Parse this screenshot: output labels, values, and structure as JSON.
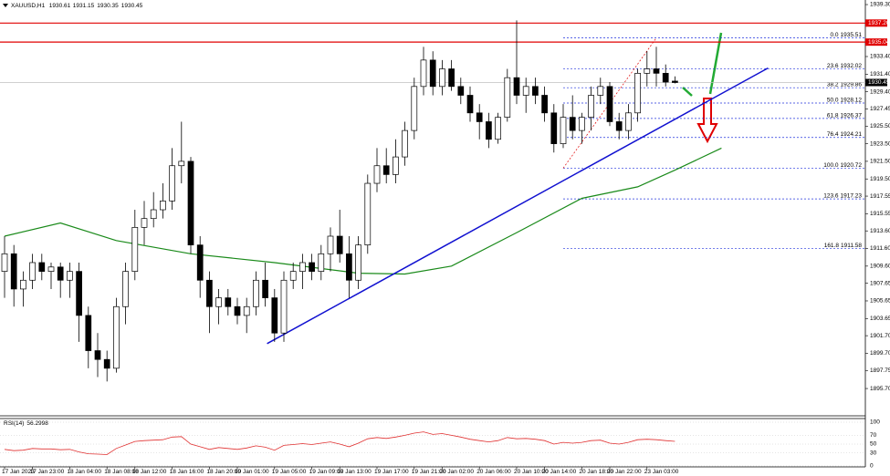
{
  "chart_data": {
    "type": "candlestick",
    "title": "XAUUSD,H1",
    "open": [
      1909,
      1911,
      1907,
      1908,
      1910,
      1909,
      1909.5,
      1908,
      1909,
      1904,
      1900,
      1899,
      1898,
      1905,
      1909,
      1914,
      1915,
      1916,
      1917,
      1921,
      1921.5,
      1912,
      1908,
      1905,
      1906,
      1905,
      1904,
      1905,
      1908,
      1906,
      1902,
      1908,
      1909,
      1910,
      1909,
      1911,
      1913,
      1911,
      1908,
      1912,
      1919,
      1921,
      1920,
      1922,
      1925,
      1930,
      1933,
      1930,
      1932,
      1930,
      1929,
      1927,
      1926,
      1924,
      1926.5,
      1931,
      1929,
      1930,
      1929,
      1927,
      1923.5,
      1926.5,
      1925,
      1926.5,
      1929,
      1930,
      1926,
      1925,
      1927,
      1931.5,
      1932,
      1931.5,
      1930.61
    ],
    "high": [
      1913,
      1912,
      1909,
      1911,
      1911,
      1910,
      1910,
      1910,
      1910,
      1905,
      1902,
      1900,
      1906,
      1910,
      1916,
      1917,
      1918,
      1919,
      1923,
      1926,
      1922,
      1913,
      1909,
      1907,
      1907,
      1906,
      1906,
      1909,
      1910,
      1907,
      1909,
      1910,
      1911,
      1911,
      1912,
      1914,
      1916,
      1913,
      1913,
      1920,
      1923,
      1923,
      1924,
      1926,
      1931,
      1934.5,
      1934,
      1933,
      1933,
      1931,
      1930,
      1928,
      1927,
      1927,
      1932,
      1937.5,
      1931,
      1931,
      1930,
      1928,
      1928,
      1929,
      1927,
      1930,
      1931,
      1930.5,
      1927,
      1928,
      1932,
      1934,
      1934.5,
      1932.5,
      1931.15
    ],
    "low": [
      1906,
      1905,
      1905,
      1907,
      1908,
      1907,
      1906,
      1906,
      1901,
      1898,
      1897,
      1896.5,
      1897.5,
      1903,
      1908,
      1912,
      1914,
      1915,
      1916,
      1919,
      1911,
      1906,
      1902,
      1903,
      1904,
      1903,
      1902,
      1904,
      1905,
      1901,
      1901,
      1907,
      1907,
      1908,
      1908,
      1909,
      1910,
      1906,
      1907,
      1911,
      1918,
      1919,
      1919,
      1921,
      1924,
      1929,
      1929,
      1929,
      1929.5,
      1928,
      1926,
      1924,
      1923,
      1923.5,
      1926,
      1928,
      1927,
      1928,
      1926,
      1922.5,
      1923,
      1924,
      1923.5,
      1925,
      1928,
      1925.5,
      1924,
      1924,
      1926,
      1930,
      1930,
      1930,
      1930.35
    ],
    "close": [
      1911,
      1907,
      1908,
      1910,
      1909,
      1909.5,
      1908,
      1909,
      1904,
      1900,
      1899,
      1898,
      1905,
      1909,
      1914,
      1915,
      1916,
      1917,
      1921,
      1921.5,
      1912,
      1908,
      1905,
      1906,
      1905,
      1904,
      1905,
      1908,
      1906,
      1902,
      1908,
      1909,
      1910,
      1909,
      1911,
      1913,
      1911,
      1908,
      1912,
      1919,
      1921,
      1920,
      1922,
      1925,
      1930,
      1933,
      1930,
      1932,
      1930,
      1929,
      1927,
      1926,
      1924,
      1926.5,
      1931,
      1929,
      1930,
      1929,
      1927,
      1923.5,
      1926.5,
      1925,
      1926.5,
      1929,
      1930,
      1926,
      1925,
      1927,
      1931.5,
      1932,
      1931.5,
      1930.5,
      1930.45
    ],
    "ylim": [
      1892.6,
      1939.82
    ],
    "yticks": [
      {
        "value": 1939.3,
        "label": "1939.30"
      },
      {
        "value": 1933.4,
        "label": "1933.40"
      },
      {
        "value": 1931.4,
        "label": "1931.40"
      },
      {
        "value": 1929.4,
        "label": "1929.40"
      },
      1927.45,
      {
        "value": 1925.5,
        "label": "1925.50"
      },
      {
        "value": 1923.5,
        "label": "1923.50"
      },
      {
        "value": 1921.5,
        "label": "1921.50"
      },
      {
        "value": 1919.5,
        "label": "1919.50"
      },
      1917.55,
      1915.55,
      {
        "value": 1913.6,
        "label": "1913.60"
      },
      {
        "value": 1911.6,
        "label": "1911.60"
      },
      {
        "value": 1909.6,
        "label": "1909.60"
      },
      1907.65,
      1905.65,
      1903.65,
      {
        "value": 1901.7,
        "label": "1901.70"
      },
      {
        "value": 1899.7,
        "label": "1899.70"
      },
      1897.75,
      {
        "value": 1895.7,
        "label": "1895.70"
      }
    ],
    "xticks": [
      {
        "value": 0,
        "label": "17 Jan 2023"
      },
      {
        "value": 3,
        "label": "17 Jan 23:00"
      },
      {
        "value": 7,
        "label": "18 Jan 04:00"
      },
      {
        "value": 11,
        "label": "18 Jan 08:00"
      },
      {
        "value": 14,
        "label": "18 Jan 12:00"
      },
      {
        "value": 18,
        "label": "18 Jan 16:00"
      },
      {
        "value": 22,
        "label": "18 Jan 20:00"
      },
      {
        "value": 25,
        "label": "19 Jan 01:00"
      },
      {
        "value": 29,
        "label": "19 Jan 05:00"
      },
      {
        "value": 33,
        "label": "19 Jan 09:00"
      },
      {
        "value": 36,
        "label": "19 Jan 13:00"
      },
      {
        "value": 40,
        "label": "19 Jan 17:00"
      },
      {
        "value": 44,
        "label": "19 Jan 21:00"
      },
      {
        "value": 47,
        "label": "20 Jan 02:00"
      },
      {
        "value": 51,
        "label": "20 Jan 06:00"
      },
      {
        "value": 55,
        "label": "20 Jan 10:00"
      },
      {
        "value": 58,
        "label": "20 Jan 14:00"
      },
      {
        "value": 62,
        "label": "20 Jan 18:00"
      },
      {
        "value": 65,
        "label": "20 Jan 22:00"
      },
      {
        "value": 69,
        "label": "23 Jan 03:00"
      }
    ],
    "up_color": "#ffffff",
    "down_color": "#000000",
    "hlines": [
      {
        "value": 1937.2,
        "label": "1937.20"
      },
      1935.04
    ],
    "hline_color": "#e00000",
    "ma": {
      "x": [
        0,
        6,
        12,
        20,
        29,
        38,
        43,
        48,
        55,
        62,
        68,
        72,
        77
      ],
      "values": [
        1913,
        1914.5,
        1912.5,
        1911,
        1910,
        1908.8,
        1908.7,
        1909.6,
        1913.4,
        1917.3,
        1918.6,
        1920.5,
        1923
      ],
      "color": "#1a8a1a"
    },
    "trendline": {
      "x": [
        28.2,
        82
      ],
      "values": [
        1900.8,
        1932.1
      ],
      "color": "#1010d0"
    },
    "fib": {
      "x": [
        60,
        70
      ],
      "levels": [
        {
          "value": 0,
          "label": "0.0"
        },
        23.6,
        38.2,
        {
          "value": 50,
          "label": "50.0"
        },
        61.8,
        76.4,
        {
          "value": 100,
          "label": "100.0"
        },
        123.6,
        161.8
      ],
      "prices": [
        1935.51,
        1932.02,
        1929.86,
        1928.12,
        1926.37,
        1924.21,
        1920.72,
        1917.23,
        1911.58
      ],
      "color": "#2233dd"
    },
    "rsi": {
      "title": "RSI(14)",
      "ylim": [
        0,
        100
      ],
      "yticks": [
        100,
        70,
        50,
        30,
        0
      ],
      "color": "#e03030",
      "values": [
        38,
        35,
        36,
        40,
        39,
        39,
        37,
        38,
        32,
        28,
        27,
        26,
        40,
        48,
        56,
        58,
        59,
        60,
        66,
        67,
        50,
        44,
        38,
        42,
        40,
        38,
        41,
        46,
        43,
        36,
        47,
        49,
        51,
        49,
        52,
        55,
        50,
        44,
        52,
        62,
        65,
        63,
        66,
        70,
        75,
        78,
        72,
        74,
        70,
        66,
        61,
        58,
        55,
        58,
        65,
        62,
        63,
        61,
        58,
        50,
        54,
        52,
        54,
        58,
        59,
        52,
        50,
        54,
        60,
        61,
        60,
        58,
        56.2998
      ]
    }
  }
}
